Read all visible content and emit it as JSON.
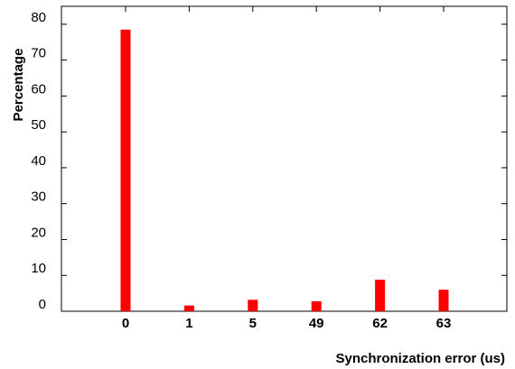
{
  "chart_data": {
    "type": "bar",
    "categories": [
      "0",
      "1",
      "5",
      "49",
      "62",
      "63"
    ],
    "values": [
      78.5,
      1.6,
      3.2,
      2.8,
      8.8,
      6.0
    ],
    "xlabel": "Synchronization error (us)",
    "ylabel": "Percentage",
    "ylim": [
      0,
      85
    ],
    "yticks": [
      0,
      10,
      20,
      30,
      40,
      50,
      60,
      70,
      80
    ],
    "bar_color": "#ff0000",
    "grid": false,
    "legend": "none"
  }
}
